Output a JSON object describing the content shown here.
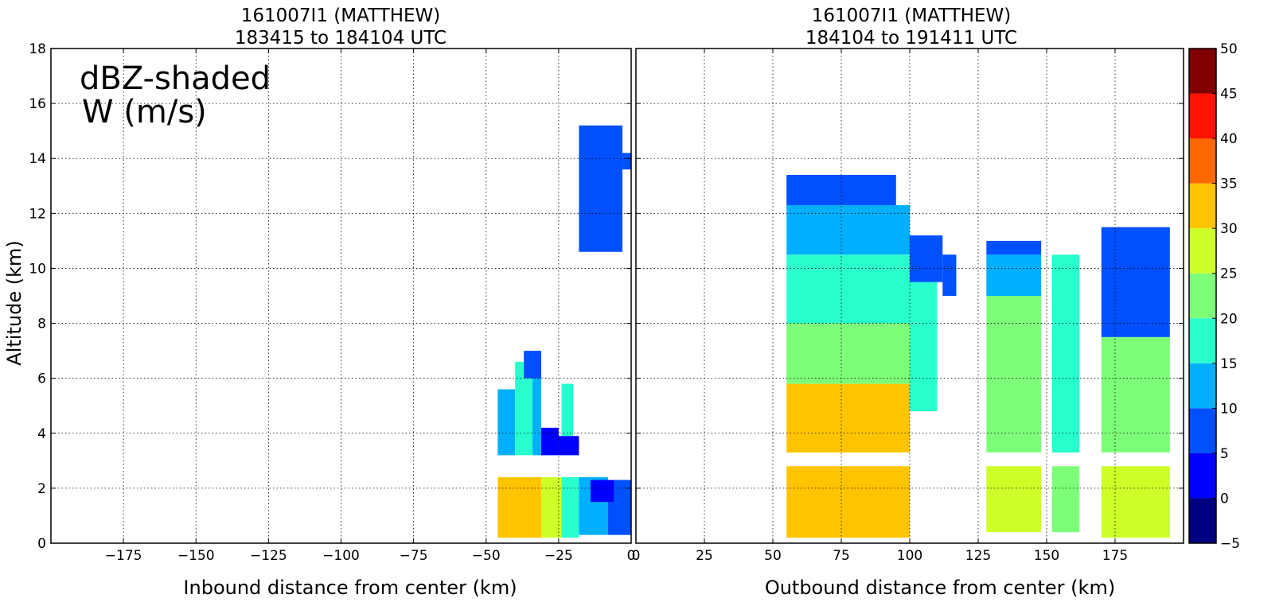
{
  "chart_data": [
    {
      "type": "heatmap",
      "title_line1": "161007I1 (MATTHEW)",
      "title_line2": "183415 to 184104 UTC",
      "xlabel": "Inbound distance from center (km)",
      "ylabel": "Altitude (km)",
      "xlim": [
        -200,
        0
      ],
      "ylim": [
        0,
        18
      ],
      "xticks": [
        -175,
        -150,
        -125,
        -100,
        -75,
        -50,
        -25,
        0
      ],
      "xtick_labels": [
        "−175",
        "−150",
        "−125",
        "−100",
        "−75",
        "−50",
        "−25",
        "0"
      ],
      "yticks": [
        0,
        2,
        4,
        6,
        8,
        10,
        12,
        14,
        16,
        18
      ],
      "ytick_labels": [
        "0",
        "2",
        "4",
        "6",
        "8",
        "10",
        "12",
        "14",
        "16",
        "18"
      ],
      "grid": true,
      "annotation_line1": "dBZ-shaded",
      "annotation_line2": "W (m/s)",
      "contour_label": "1",
      "cells": [
        {
          "x0": -18,
          "x1": -3,
          "y0": 10.6,
          "y1": 15.2,
          "dbz": 7
        },
        {
          "x0": -3,
          "x1": 0,
          "y0": 13.6,
          "y1": 14.2,
          "dbz": 7
        },
        {
          "x0": -46,
          "x1": -40,
          "y0": 3.2,
          "y1": 5.6,
          "dbz": 12
        },
        {
          "x0": -40,
          "x1": -34,
          "y0": 3.2,
          "y1": 6.6,
          "dbz": 17
        },
        {
          "x0": -34,
          "x1": -31,
          "y0": 3.2,
          "y1": 6.6,
          "dbz": 12
        },
        {
          "x0": -37,
          "x1": -31,
          "y0": 6.0,
          "y1": 7.0,
          "dbz": 7
        },
        {
          "x0": -31,
          "x1": -25,
          "y0": 3.2,
          "y1": 4.2,
          "dbz": 2
        },
        {
          "x0": -25,
          "x1": -18,
          "y0": 3.2,
          "y1": 3.9,
          "dbz": 2
        },
        {
          "x0": -24,
          "x1": -20,
          "y0": 3.9,
          "y1": 5.8,
          "dbz": 17
        },
        {
          "x0": -46,
          "x1": -31,
          "y0": 0.2,
          "y1": 2.4,
          "dbz": 32
        },
        {
          "x0": -31,
          "x1": -24,
          "y0": 0.2,
          "y1": 2.4,
          "dbz": 27
        },
        {
          "x0": -24,
          "x1": -18,
          "y0": 0.2,
          "y1": 2.4,
          "dbz": 17
        },
        {
          "x0": -18,
          "x1": -8,
          "y0": 0.3,
          "y1": 2.4,
          "dbz": 12
        },
        {
          "x0": -8,
          "x1": 0,
          "y0": 0.3,
          "y1": 2.3,
          "dbz": 7
        },
        {
          "x0": -14,
          "x1": -6,
          "y0": 1.5,
          "y1": 2.3,
          "dbz": 2
        }
      ]
    },
    {
      "type": "heatmap",
      "title_line1": "161007I1 (MATTHEW)",
      "title_line2": "184104 to 191411 UTC",
      "xlabel": "Outbound distance from center (km)",
      "xlim": [
        0,
        200
      ],
      "ylim": [
        0,
        18
      ],
      "xticks": [
        0,
        25,
        50,
        75,
        100,
        125,
        150,
        175
      ],
      "xtick_labels": [
        "0",
        "25",
        "50",
        "75",
        "100",
        "125",
        "150",
        "175"
      ],
      "grid": true,
      "contour_label": "1",
      "cells": [
        {
          "x0": 55,
          "x1": 100,
          "y0": 3.3,
          "y1": 5.8,
          "dbz": 32
        },
        {
          "x0": 55,
          "x1": 100,
          "y0": 5.8,
          "y1": 8.0,
          "dbz": 22
        },
        {
          "x0": 55,
          "x1": 100,
          "y0": 8.0,
          "y1": 10.5,
          "dbz": 17
        },
        {
          "x0": 55,
          "x1": 100,
          "y0": 10.5,
          "y1": 12.3,
          "dbz": 12
        },
        {
          "x0": 55,
          "x1": 95,
          "y0": 12.3,
          "y1": 13.4,
          "dbz": 7
        },
        {
          "x0": 100,
          "x1": 110,
          "y0": 4.8,
          "y1": 9.5,
          "dbz": 17
        },
        {
          "x0": 100,
          "x1": 112,
          "y0": 9.5,
          "y1": 11.2,
          "dbz": 7
        },
        {
          "x0": 112,
          "x1": 117,
          "y0": 9.0,
          "y1": 10.5,
          "dbz": 7
        },
        {
          "x0": 128,
          "x1": 148,
          "y0": 3.3,
          "y1": 9.0,
          "dbz": 22
        },
        {
          "x0": 128,
          "x1": 148,
          "y0": 9.0,
          "y1": 10.5,
          "dbz": 12
        },
        {
          "x0": 128,
          "x1": 148,
          "y0": 10.5,
          "y1": 11.0,
          "dbz": 7
        },
        {
          "x0": 152,
          "x1": 162,
          "y0": 3.3,
          "y1": 10.5,
          "dbz": 17
        },
        {
          "x0": 170,
          "x1": 195,
          "y0": 3.3,
          "y1": 7.5,
          "dbz": 22
        },
        {
          "x0": 170,
          "x1": 195,
          "y0": 7.5,
          "y1": 11.5,
          "dbz": 7
        },
        {
          "x0": 55,
          "x1": 100,
          "y0": 0.2,
          "y1": 2.8,
          "dbz": 32
        },
        {
          "x0": 128,
          "x1": 148,
          "y0": 0.4,
          "y1": 2.8,
          "dbz": 27
        },
        {
          "x0": 152,
          "x1": 162,
          "y0": 0.4,
          "y1": 2.8,
          "dbz": 22
        },
        {
          "x0": 170,
          "x1": 195,
          "y0": 0.2,
          "y1": 2.8,
          "dbz": 27
        }
      ]
    }
  ],
  "colorbar": {
    "levels": [
      -5,
      0,
      5,
      10,
      15,
      20,
      25,
      30,
      35,
      40,
      45,
      50
    ],
    "tick_labels": [
      "−5",
      "0",
      "5",
      "10",
      "15",
      "20",
      "25",
      "30",
      "35",
      "40",
      "45",
      "50"
    ],
    "colors": [
      "#000080",
      "#0000ff",
      "#0050ff",
      "#00b0ff",
      "#29ffce",
      "#7dff7a",
      "#ceff29",
      "#ffc400",
      "#ff6800",
      "#ff1300",
      "#800000"
    ]
  }
}
